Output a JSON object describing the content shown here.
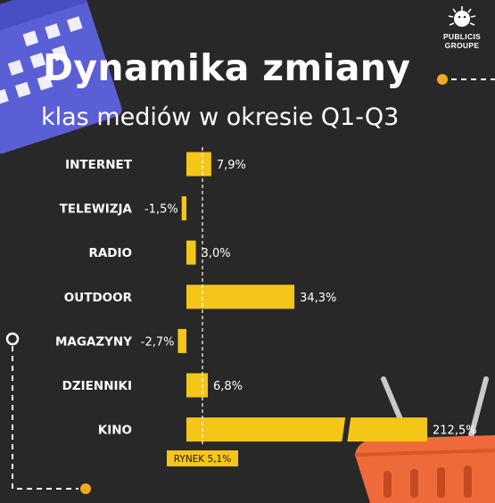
{
  "title": "Dynamika zmiany",
  "subtitle": "klas mediów w okresie Q1-Q3",
  "logo": {
    "line1": "PUBLICIS",
    "line2": "GROUPE"
  },
  "colors": {
    "background": "#282828",
    "bar": "#f5c518",
    "text": "#ffffff",
    "accent_blue": "#5b5fd6",
    "accent_orange": "#ef6a3a"
  },
  "chart_data": {
    "type": "bar",
    "orientation": "horizontal",
    "categories": [
      "INTERNET",
      "TELEWIZJA",
      "RADIO",
      "OUTDOOR",
      "MAGAZYNY",
      "DZIENNIKI",
      "KINO"
    ],
    "values": [
      7.9,
      -1.5,
      3.0,
      34.3,
      -2.7,
      6.8,
      212.5
    ],
    "value_labels": [
      "7,9%",
      "-1,5%",
      "3,0%",
      "34,3%",
      "-2,7%",
      "6,8%",
      "212,5%"
    ],
    "axis_break": true,
    "reference_line": {
      "value": 5.1,
      "label": "RYNEK 5,1%",
      "style": "dashed"
    },
    "grid": false,
    "legend": "none"
  }
}
